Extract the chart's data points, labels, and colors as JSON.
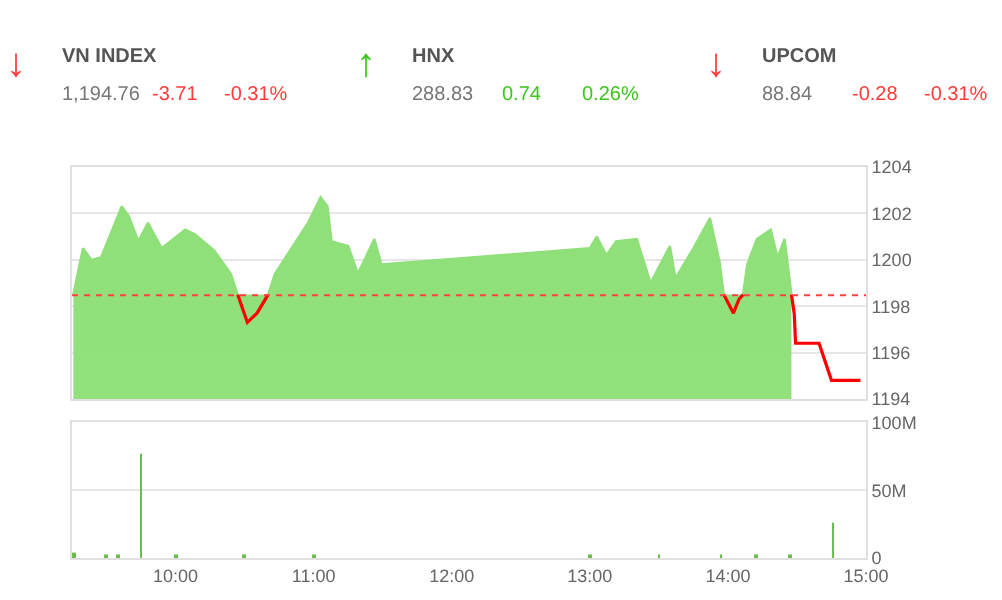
{
  "chart_data": [
    {
      "type": "other",
      "annotations": [
        "↓",
        "VN INDEX",
        "1,194.76",
        "-3.71",
        "-0.31%",
        "↑",
        "HNX",
        "288.83",
        "0.74",
        "0.26%",
        "↓",
        "UPCOM",
        "88.84",
        "-0.28",
        "-0.31%"
      ]
    },
    {
      "type": "area",
      "x": [
        9.26,
        9.33,
        9.39,
        9.46,
        9.61,
        9.66,
        9.73,
        9.8,
        9.9,
        10.07,
        10.14,
        10.28,
        10.4,
        10.45,
        10.52,
        10.59,
        10.67,
        10.72,
        10.84,
        10.96,
        11.05,
        11.1,
        11.13,
        11.25,
        11.32,
        11.44,
        11.49,
        13.0,
        13.05,
        13.12,
        13.19,
        13.34,
        13.44,
        13.58,
        13.62,
        13.75,
        13.87,
        13.94,
        13.97,
        14.04,
        14.08,
        14.11,
        14.14,
        14.21,
        14.31,
        14.36,
        14.41,
        14.46,
        14.48,
        14.49,
        14.66,
        14.75,
        14.96
      ],
      "series": [
        {
          "type": "area",
          "color": "#90e07a",
          "values": [
            1198.5,
            1200.5,
            1200.0,
            1200.1,
            1202.3,
            1201.9,
            1200.8,
            1201.6,
            1200.5,
            1201.3,
            1201.1,
            1200.4,
            1199.4,
            1198.5,
            null,
            null,
            1198.5,
            1199.4,
            1200.5,
            1201.6,
            1202.7,
            1202.3,
            1200.8,
            1200.6,
            1199.4,
            1200.9,
            1199.8,
            1200.5,
            1201.0,
            1200.2,
            1200.8,
            1200.9,
            1199.0,
            1200.6,
            1199.2,
            1200.5,
            1201.8,
            1199.9,
            1198.5,
            null,
            null,
            1198.5,
            1199.8,
            1200.9,
            1201.3,
            1200.1,
            1200.9,
            1198.5,
            null,
            null,
            null,
            null,
            null
          ]
        },
        {
          "type": "line",
          "color": "#ff0000",
          "values": [
            null,
            null,
            null,
            null,
            null,
            null,
            null,
            null,
            null,
            null,
            null,
            null,
            null,
            1198.5,
            1197.3,
            1197.7,
            1198.5,
            null,
            null,
            null,
            null,
            null,
            null,
            null,
            null,
            null,
            null,
            null,
            null,
            null,
            null,
            null,
            null,
            null,
            null,
            null,
            null,
            null,
            1198.5,
            1197.7,
            1198.3,
            1198.5,
            null,
            null,
            null,
            null,
            null,
            1198.5,
            1197.7,
            1196.4,
            1196.4,
            1194.8,
            1194.8
          ]
        }
      ],
      "ref_lines": [
        {
          "axis": "y",
          "value": 1198.47,
          "color": "#ff4040",
          "line_style": "dotted"
        }
      ],
      "xlim": [
        9.25,
        15
      ],
      "ylim": [
        1194,
        1204
      ],
      "yticks": [
        1194,
        1196,
        1198,
        1200,
        1202,
        1204
      ],
      "tick_labels": "y",
      "grid": "y"
    },
    {
      "type": "bar",
      "x": [
        9.26,
        9.5,
        9.58,
        9.75,
        10.0,
        10.5,
        11.0,
        13.0,
        13.5,
        13.95,
        14.2,
        14.45,
        14.76
      ],
      "values": [
        4,
        2,
        2,
        77,
        2,
        2,
        2,
        2,
        2,
        2,
        2,
        2,
        26
      ],
      "color": "#6abf4b",
      "xlim": [
        9.25,
        15
      ],
      "xticks": [
        {
          "value": 10,
          "label": "10:00"
        },
        {
          "value": 11,
          "label": "11:00"
        },
        {
          "value": 12,
          "label": "12:00"
        },
        {
          "value": 13,
          "label": "13:00"
        },
        {
          "value": 14,
          "label": "14:00"
        },
        {
          "value": 15,
          "label": "15:00"
        }
      ],
      "ylim": [
        0,
        100
      ],
      "yticks": [
        0,
        {
          "value": 50,
          "label": "50M"
        },
        {
          "value": 100,
          "label": "100M"
        }
      ],
      "grid": "y"
    }
  ]
}
